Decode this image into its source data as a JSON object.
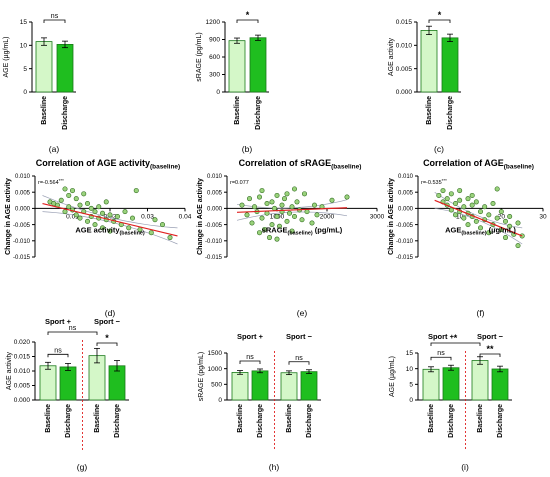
{
  "chart_data": [
    {
      "id": "a",
      "type": "bar",
      "panel_label": "(a)",
      "categories": [
        "Baseline",
        "Discharge"
      ],
      "values": [
        10.8,
        10.2
      ],
      "errors": [
        0.8,
        0.7
      ],
      "ylabel": "AGE (µg/mL)",
      "yticks": [
        0,
        5,
        10,
        15
      ],
      "ylim": [
        0,
        15
      ],
      "brackets": [
        {
          "from": 0,
          "to": 1,
          "label": "ns"
        }
      ]
    },
    {
      "id": "b",
      "type": "bar",
      "panel_label": "(b)",
      "categories": [
        "Baseline",
        "Discharge"
      ],
      "values": [
        880,
        930
      ],
      "errors": [
        45,
        45
      ],
      "ylabel": "sRAGE (pg/mL)",
      "yticks": [
        0,
        300,
        600,
        900,
        1200
      ],
      "ylim": [
        0,
        1200
      ],
      "brackets": [
        {
          "from": 0,
          "to": 1,
          "label": "*"
        }
      ]
    },
    {
      "id": "c",
      "type": "bar",
      "panel_label": "(c)",
      "categories": [
        "Baseline",
        "Discharge"
      ],
      "values": [
        0.0132,
        0.0116
      ],
      "errors": [
        0.0009,
        0.0008
      ],
      "ylabel": "AGE activity",
      "yticks": [
        0,
        0.005,
        0.01,
        0.015
      ],
      "ytick_labels": [
        "0.000",
        "0.005",
        "0.010",
        "0.015"
      ],
      "ylim": [
        0,
        0.015
      ],
      "brackets": [
        {
          "from": 0,
          "to": 1,
          "label": "*"
        }
      ]
    },
    {
      "id": "d",
      "type": "scatter",
      "panel_label": "(d)",
      "title_main": "Correlation of AGE activity",
      "title_sub": "(baseline)",
      "xlabel_main": "AGE activity",
      "xlabel_sub": "(baseline)",
      "xlabel_unit": "",
      "ylabel": "Change in AGE activity",
      "annotation": "r=-0.564",
      "annotation_sig": "***",
      "xlim": [
        0,
        0.04
      ],
      "ylim": [
        -0.015,
        0.01
      ],
      "xticks": [
        0.01,
        0.02,
        0.03,
        0.04
      ],
      "xtick_labels": [
        "0.01",
        "0.02",
        "0.03",
        "0.04"
      ],
      "yticks": [
        -0.015,
        -0.01,
        -0.005,
        0,
        0.005,
        0.01
      ],
      "ytick_labels": [
        "-0.015",
        "-0.010",
        "-0.005",
        "0.000",
        "0.005",
        "0.010"
      ],
      "trend": {
        "x0": 0.002,
        "y0": 0.0015,
        "x1": 0.038,
        "y1": -0.0085
      },
      "points": [
        [
          0.004,
          0.002
        ],
        [
          0.005,
          0.0015
        ],
        [
          0.006,
          0.001
        ],
        [
          0.007,
          0.0025
        ],
        [
          0.008,
          0.006
        ],
        [
          0.008,
          -0.001
        ],
        [
          0.009,
          0.004
        ],
        [
          0.009,
          0.0005
        ],
        [
          0.01,
          0.0055
        ],
        [
          0.01,
          -0.0005
        ],
        [
          0.011,
          0.003
        ],
        [
          0.011,
          -0.002
        ],
        [
          0.012,
          0.001
        ],
        [
          0.012,
          -0.003
        ],
        [
          0.013,
          0.0045
        ],
        [
          0.013,
          -0.001
        ],
        [
          0.014,
          -0.004
        ],
        [
          0.014,
          0.0015
        ],
        [
          0.015,
          0.0
        ],
        [
          0.015,
          -0.0025
        ],
        [
          0.016,
          -0.005
        ],
        [
          0.016,
          -0.001
        ],
        [
          0.017,
          0.0005
        ],
        [
          0.017,
          -0.003
        ],
        [
          0.018,
          -0.0015
        ],
        [
          0.018,
          -0.006
        ],
        [
          0.019,
          -0.0035
        ],
        [
          0.019,
          0.002
        ],
        [
          0.02,
          -0.002
        ],
        [
          0.02,
          -0.007
        ],
        [
          0.021,
          -0.004
        ],
        [
          0.022,
          -0.0025
        ],
        [
          0.023,
          -0.005
        ],
        [
          0.024,
          -0.001
        ],
        [
          0.025,
          -0.006
        ],
        [
          0.026,
          -0.003
        ],
        [
          0.027,
          0.0055
        ],
        [
          0.028,
          -0.0065
        ],
        [
          0.032,
          -0.0035
        ],
        [
          0.034,
          -0.005
        ],
        [
          0.036,
          -0.009
        ],
        [
          0.031,
          -0.0075
        ]
      ]
    },
    {
      "id": "e",
      "type": "scatter",
      "panel_label": "(e)",
      "title_main": "Correlation of sRAGE",
      "title_sub": "(baseline)",
      "xlabel_main": "sRAGE",
      "xlabel_sub": "(baseline)",
      "xlabel_unit": " (pg/mL)",
      "ylabel": "Change in AGE activity",
      "annotation": "r=0.077",
      "annotation_sig": "",
      "xlim": [
        0,
        3000
      ],
      "ylim": [
        -0.015,
        0.01
      ],
      "xticks": [
        1000,
        2000,
        3000
      ],
      "xtick_labels": [
        "1000",
        "2000",
        "3000"
      ],
      "yticks": [
        -0.015,
        -0.01,
        -0.005,
        0,
        0.005,
        0.01
      ],
      "ytick_labels": [
        "-0.015",
        "-0.010",
        "-0.005",
        "0.000",
        "0.005",
        "0.010"
      ],
      "trend": {
        "x0": 200,
        "y0": -0.0012,
        "x1": 2400,
        "y1": 0.0002
      },
      "points": [
        [
          300,
          0.001
        ],
        [
          400,
          -0.002
        ],
        [
          450,
          0.003
        ],
        [
          500,
          -0.0045
        ],
        [
          550,
          0.0005
        ],
        [
          600,
          -0.001
        ],
        [
          650,
          0.0035
        ],
        [
          700,
          -0.003
        ],
        [
          700,
          0.0055
        ],
        [
          750,
          -0.0065
        ],
        [
          800,
          0.0015
        ],
        [
          800,
          -0.0015
        ],
        [
          850,
          -0.009
        ],
        [
          900,
          0.002
        ],
        [
          900,
          -0.005
        ],
        [
          950,
          0.0
        ],
        [
          1000,
          0.004
        ],
        [
          1000,
          -0.0025
        ],
        [
          1050,
          -0.0055
        ],
        [
          1100,
          0.001
        ],
        [
          1100,
          -0.001
        ],
        [
          1150,
          0.003
        ],
        [
          1200,
          -0.004
        ],
        [
          1200,
          0.0045
        ],
        [
          1250,
          -0.0015
        ],
        [
          1300,
          0.0005
        ],
        [
          1300,
          -0.007
        ],
        [
          1350,
          -0.0025
        ],
        [
          1400,
          0.002
        ],
        [
          1450,
          -0.0005
        ],
        [
          1500,
          -0.0035
        ],
        [
          1550,
          0.0045
        ],
        [
          1600,
          -0.001
        ],
        [
          1700,
          -0.0045
        ],
        [
          1750,
          0.001
        ],
        [
          1800,
          -0.002
        ],
        [
          1900,
          0.0005
        ],
        [
          2100,
          0.0025
        ],
        [
          2400,
          0.0035
        ],
        [
          1000,
          -0.0095
        ],
        [
          650,
          -0.0075
        ],
        [
          1350,
          0.006
        ]
      ]
    },
    {
      "id": "f",
      "type": "scatter",
      "panel_label": "(f)",
      "title_main": "Correlation of AGE",
      "title_sub": "(baseline)",
      "xlabel_main": "AGE",
      "xlabel_sub": "(baseline)",
      "xlabel_unit": " (µg/mL)",
      "ylabel": "Change in AGE activity",
      "annotation": "r=-0.535",
      "annotation_sig": "***",
      "xlim": [
        0,
        30
      ],
      "ylim": [
        -0.015,
        0.01
      ],
      "xticks": [
        10,
        20,
        30
      ],
      "xtick_labels": [
        "10",
        "20",
        "30"
      ],
      "yticks": [
        -0.015,
        -0.01,
        -0.005,
        0,
        0.005,
        0.01
      ],
      "ytick_labels": [
        "-0.015",
        "-0.010",
        "-0.005",
        "0.000",
        "0.005",
        "0.010"
      ],
      "trend": {
        "x0": 4,
        "y0": 0.0025,
        "x1": 25,
        "y1": -0.0085
      },
      "points": [
        [
          5,
          0.004
        ],
        [
          6,
          0.002
        ],
        [
          6,
          0.0055
        ],
        [
          7,
          0.001
        ],
        [
          7,
          0.003
        ],
        [
          8,
          -0.0005
        ],
        [
          8,
          0.0045
        ],
        [
          9,
          0.0015
        ],
        [
          9,
          -0.002
        ],
        [
          10,
          0.0025
        ],
        [
          10,
          -0.001
        ],
        [
          10,
          0.0055
        ],
        [
          11,
          0.0005
        ],
        [
          11,
          -0.003
        ],
        [
          12,
          0.003
        ],
        [
          12,
          -0.0015
        ],
        [
          12,
          -0.005
        ],
        [
          13,
          0.001
        ],
        [
          13,
          -0.0025
        ],
        [
          14,
          -0.004
        ],
        [
          14,
          0.002
        ],
        [
          15,
          -0.001
        ],
        [
          15,
          -0.006
        ],
        [
          16,
          -0.0035
        ],
        [
          16,
          0.0005
        ],
        [
          17,
          -0.002
        ],
        [
          17,
          -0.0075
        ],
        [
          18,
          -0.005
        ],
        [
          18,
          0.0015
        ],
        [
          19,
          -0.003
        ],
        [
          20,
          -0.0065
        ],
        [
          20,
          -0.001
        ],
        [
          21,
          -0.004
        ],
        [
          22,
          -0.0055
        ],
        [
          22,
          -0.0025
        ],
        [
          23,
          -0.008
        ],
        [
          24,
          -0.0045
        ],
        [
          24,
          -0.0115
        ],
        [
          25,
          -0.0085
        ],
        [
          19,
          0.006
        ],
        [
          13,
          0.004
        ],
        [
          21,
          -0.009
        ]
      ]
    },
    {
      "id": "g",
      "type": "bar",
      "panel_label": "(g)",
      "group_labels": [
        "Sport +",
        "Sport −"
      ],
      "categories": [
        "Baseline",
        "Discharge",
        "Baseline",
        "Discharge"
      ],
      "values": [
        0.0118,
        0.0114,
        0.0153,
        0.0118
      ],
      "errors": [
        0.0012,
        0.0012,
        0.0025,
        0.0018
      ],
      "ylabel": "AGE activity",
      "yticks": [
        0,
        0.005,
        0.01,
        0.015,
        0.02
      ],
      "ytick_labels": [
        "0.000",
        "0.005",
        "0.010",
        "0.015",
        "0.020"
      ],
      "ylim": [
        0,
        0.02
      ],
      "brackets": [
        {
          "from": 0,
          "to": 1,
          "label": "ns"
        },
        {
          "from": 2,
          "to": 3,
          "label": "*"
        },
        {
          "from": 0,
          "to": 2,
          "label": "ns"
        }
      ]
    },
    {
      "id": "h",
      "type": "bar",
      "panel_label": "(h)",
      "group_labels": [
        "Sport +",
        "Sport −"
      ],
      "categories": [
        "Baseline",
        "Discharge",
        "Baseline",
        "Discharge"
      ],
      "values": [
        880,
        930,
        870,
        905
      ],
      "errors": [
        60,
        60,
        60,
        60
      ],
      "ylabel": "sRAGE (pg/mL)",
      "yticks": [
        0,
        500,
        1000,
        1500
      ],
      "ylim": [
        0,
        1500
      ],
      "brackets": [
        {
          "from": 0,
          "to": 1,
          "label": "ns"
        },
        {
          "from": 2,
          "to": 3,
          "label": "ns"
        }
      ]
    },
    {
      "id": "i",
      "type": "bar",
      "panel_label": "(i)",
      "group_labels": [
        "Sport +",
        "Sport −"
      ],
      "categories": [
        "Baseline",
        "Discharge",
        "Baseline",
        "Discharge"
      ],
      "values": [
        9.8,
        10.3,
        12.6,
        9.9
      ],
      "errors": [
        0.8,
        0.8,
        1.2,
        0.9
      ],
      "ylabel": "AGE (µg/mL)",
      "yticks": [
        0,
        5,
        10,
        15
      ],
      "ylim": [
        0,
        15
      ],
      "brackets": [
        {
          "from": 0,
          "to": 1,
          "label": "ns"
        },
        {
          "from": 2,
          "to": 3,
          "label": "**"
        },
        {
          "from": 0,
          "to": 2,
          "label": "*"
        }
      ]
    }
  ],
  "colors": {
    "baseline_fill": "#d4f7c8",
    "discharge_fill": "#1fbe1f",
    "bar_stroke": "#1a7a1a",
    "scatter_fill": "#9ad27c",
    "scatter_stroke": "#2f6b1e",
    "trend": "#e02020",
    "ci": "#9aa0b4",
    "divider": "#e02020"
  }
}
